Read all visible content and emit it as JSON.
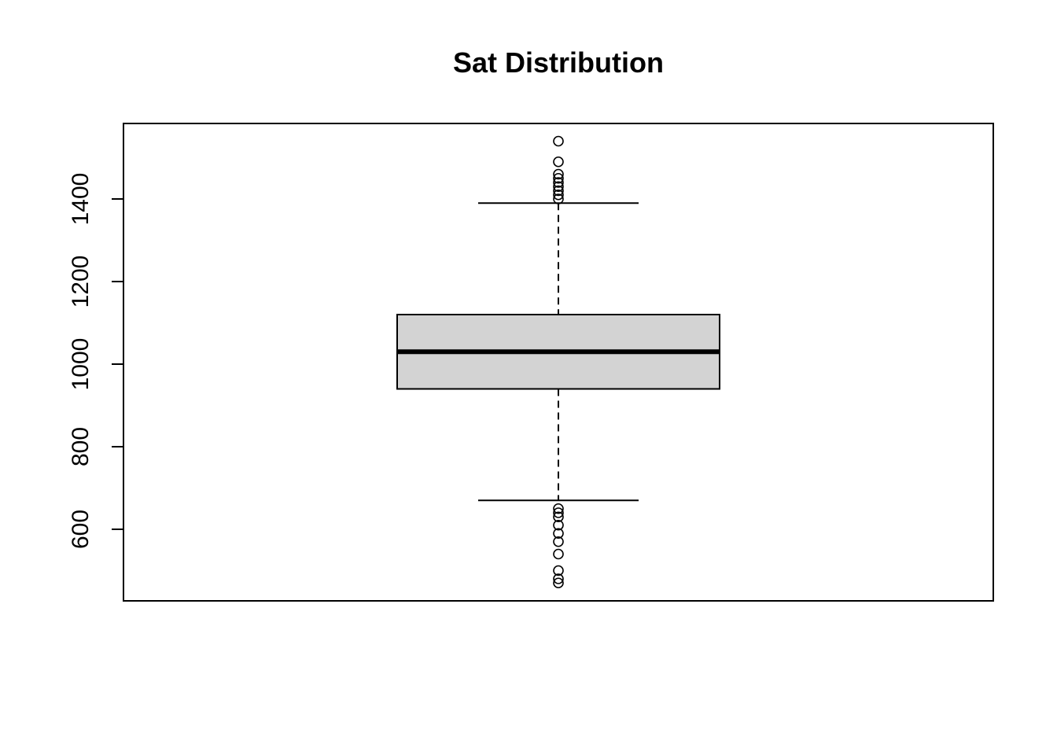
{
  "chart_data": {
    "type": "boxplot",
    "title": "Sat Distribution",
    "xlabel": "",
    "ylabel": "",
    "ylim": [
      460,
      1560
    ],
    "yticks": [
      600,
      800,
      1000,
      1200,
      1400
    ],
    "ytick_labels": [
      "600",
      "800",
      "1000",
      "1200",
      "1400"
    ],
    "grid": false,
    "box": {
      "whisker_low": 670,
      "q1": 940,
      "median": 1030,
      "q3": 1120,
      "whisker_high": 1390,
      "box_fill": "#d3d3d3",
      "outline_color": "#000000"
    },
    "outliers": [
      1540,
      1490,
      1460,
      1450,
      1440,
      1430,
      1420,
      1410,
      1400,
      650,
      640,
      630,
      610,
      590,
      570,
      540,
      500,
      480,
      470
    ]
  }
}
